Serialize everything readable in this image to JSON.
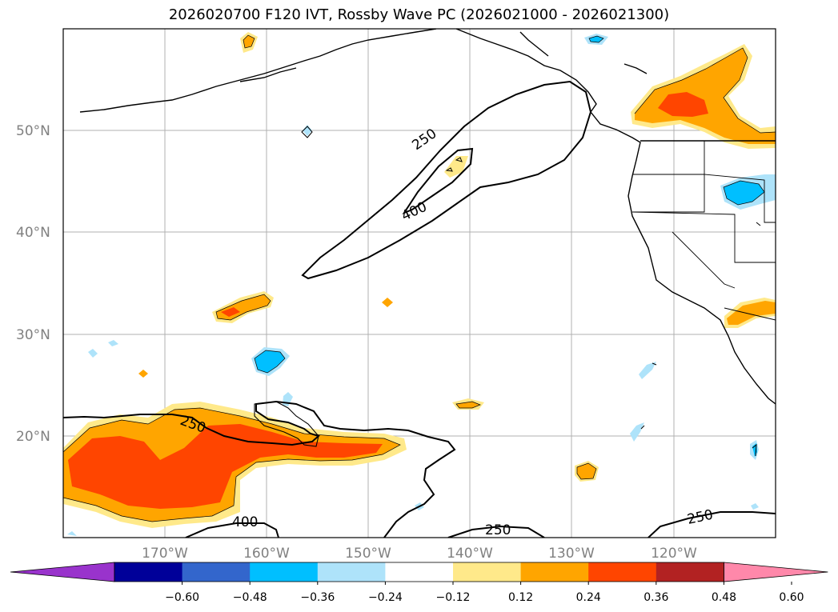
{
  "title": "2026020700 F120 IVT, Rossby Wave PC (2026021000 - 2026021300)",
  "map": {
    "lat_labels": [
      "50°N",
      "40°N",
      "30°N",
      "20°N"
    ],
    "lon_labels": [
      "170°W",
      "160°W",
      "150°W",
      "140°W",
      "130°W",
      "120°W"
    ],
    "contour_labels": [
      "250",
      "400",
      "250",
      "400",
      "250",
      "250"
    ]
  },
  "colorbar": {
    "ticks": [
      "−0.60",
      "−0.48",
      "−0.36",
      "−0.24",
      "−0.12",
      "0.12",
      "0.24",
      "0.36",
      "0.48",
      "0.60"
    ],
    "colors": [
      "#9933CC",
      "#000099",
      "#3366CC",
      "#00BFFF",
      "#AEE3FA",
      "#FFFFFF",
      "#FFE98A",
      "#FFA500",
      "#FF4500",
      "#B22222",
      "#FF88AA"
    ]
  }
}
